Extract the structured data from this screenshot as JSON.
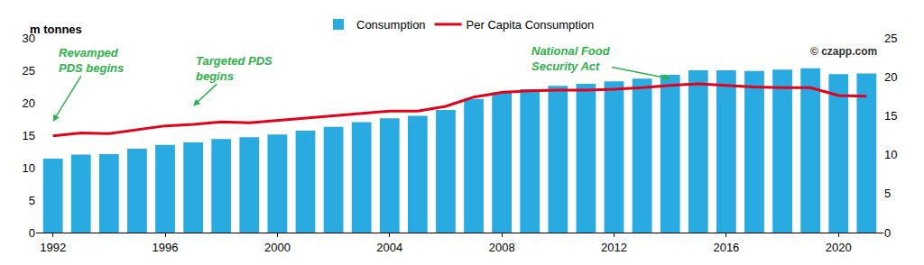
{
  "chart_data": {
    "type": "bar",
    "y_label": "m tonnes",
    "credit": "© czapp.com",
    "x": [
      1992,
      1993,
      1994,
      1995,
      1996,
      1997,
      1998,
      1999,
      2000,
      2001,
      2002,
      2003,
      2004,
      2005,
      2006,
      2007,
      2008,
      2009,
      2010,
      2011,
      2012,
      2013,
      2014,
      2015,
      2016,
      2017,
      2018,
      2019,
      2020,
      2021
    ],
    "series": [
      {
        "name": "Consumption",
        "type": "bar",
        "color": "#29abe2",
        "values": [
          11.4,
          12.0,
          12.1,
          12.9,
          13.5,
          13.9,
          14.4,
          14.7,
          15.1,
          15.7,
          16.3,
          17.0,
          17.6,
          18.0,
          18.9,
          20.6,
          21.6,
          22.1,
          22.6,
          22.9,
          23.3,
          23.7,
          24.3,
          25.0,
          25.0,
          24.9,
          25.1,
          25.3,
          24.4,
          24.5
        ]
      },
      {
        "name": "Per Capita Consumption",
        "type": "line",
        "color": "#e3001b",
        "axis": "y2",
        "values": [
          12.4,
          12.8,
          12.7,
          13.2,
          13.7,
          13.9,
          14.2,
          14.1,
          14.4,
          14.7,
          15.0,
          15.3,
          15.6,
          15.6,
          16.2,
          17.4,
          18.0,
          18.2,
          18.3,
          18.3,
          18.4,
          18.6,
          18.9,
          19.1,
          18.9,
          18.7,
          18.6,
          18.6,
          17.6,
          17.5
        ]
      }
    ],
    "xlim": [
      1991.4,
      2021.6
    ],
    "xticks": [
      1992,
      1996,
      2000,
      2004,
      2008,
      2012,
      2016,
      2020
    ],
    "ylim": [
      0,
      30
    ],
    "yticks": [
      0,
      5,
      10,
      15,
      20,
      25,
      30
    ],
    "y2lim": [
      0,
      25
    ],
    "y2ticks": [
      0,
      5,
      10,
      15,
      20,
      25
    ],
    "annotations": [
      {
        "text": [
          "Revamped",
          "PDS begins"
        ],
        "x": 1992
      },
      {
        "text": [
          "Targeted PDS",
          "begins"
        ],
        "x": 1997
      },
      {
        "text": [
          "National Food",
          "Security Act"
        ],
        "x": 2014
      }
    ],
    "grid": false,
    "legend": "top"
  }
}
